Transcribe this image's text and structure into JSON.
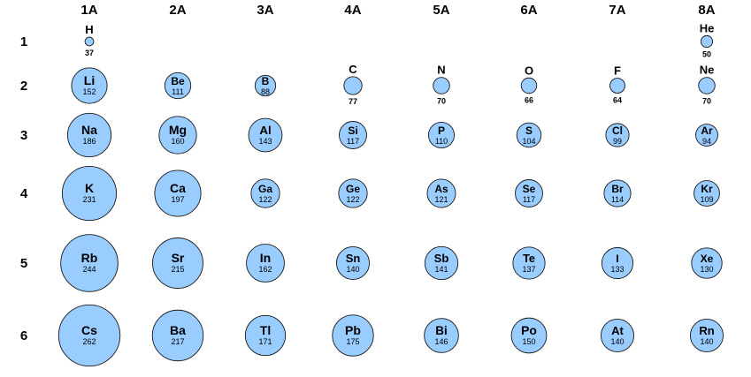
{
  "chart_data": {
    "type": "scatter",
    "title": "",
    "groups": [
      "1A",
      "2A",
      "3A",
      "4A",
      "5A",
      "6A",
      "7A",
      "8A"
    ],
    "periods": [
      "1",
      "2",
      "3",
      "4",
      "5",
      "6"
    ],
    "colors": {
      "atom_fill": "#99ccff",
      "atom_stroke": "#1a1a1a"
    },
    "elements": [
      {
        "symbol": "H",
        "radius": 37,
        "group": 0,
        "period": 0
      },
      {
        "symbol": "He",
        "radius": 50,
        "group": 7,
        "period": 0
      },
      {
        "symbol": "Li",
        "radius": 152,
        "group": 0,
        "period": 1
      },
      {
        "symbol": "Be",
        "radius": 111,
        "group": 1,
        "period": 1
      },
      {
        "symbol": "B",
        "radius": 88,
        "group": 2,
        "period": 1
      },
      {
        "symbol": "C",
        "radius": 77,
        "group": 3,
        "period": 1
      },
      {
        "symbol": "N",
        "radius": 70,
        "group": 4,
        "period": 1
      },
      {
        "symbol": "O",
        "radius": 66,
        "group": 5,
        "period": 1
      },
      {
        "symbol": "F",
        "radius": 64,
        "group": 6,
        "period": 1
      },
      {
        "symbol": "Ne",
        "radius": 70,
        "group": 7,
        "period": 1
      },
      {
        "symbol": "Na",
        "radius": 186,
        "group": 0,
        "period": 2
      },
      {
        "symbol": "Mg",
        "radius": 160,
        "group": 1,
        "period": 2
      },
      {
        "symbol": "Al",
        "radius": 143,
        "group": 2,
        "period": 2
      },
      {
        "symbol": "Si",
        "radius": 117,
        "group": 3,
        "period": 2
      },
      {
        "symbol": "P",
        "radius": 110,
        "group": 4,
        "period": 2
      },
      {
        "symbol": "S",
        "radius": 104,
        "group": 5,
        "period": 2
      },
      {
        "symbol": "Cl",
        "radius": 99,
        "group": 6,
        "period": 2
      },
      {
        "symbol": "Ar",
        "radius": 94,
        "group": 7,
        "period": 2
      },
      {
        "symbol": "K",
        "radius": 231,
        "group": 0,
        "period": 3
      },
      {
        "symbol": "Ca",
        "radius": 197,
        "group": 1,
        "period": 3
      },
      {
        "symbol": "Ga",
        "radius": 122,
        "group": 2,
        "period": 3
      },
      {
        "symbol": "Ge",
        "radius": 122,
        "group": 3,
        "period": 3
      },
      {
        "symbol": "As",
        "radius": 121,
        "group": 4,
        "period": 3
      },
      {
        "symbol": "Se",
        "radius": 117,
        "group": 5,
        "period": 3
      },
      {
        "symbol": "Br",
        "radius": 114,
        "group": 6,
        "period": 3
      },
      {
        "symbol": "Kr",
        "radius": 109,
        "group": 7,
        "period": 3
      },
      {
        "symbol": "Rb",
        "radius": 244,
        "group": 0,
        "period": 4
      },
      {
        "symbol": "Sr",
        "radius": 215,
        "group": 1,
        "period": 4
      },
      {
        "symbol": "In",
        "radius": 162,
        "group": 2,
        "period": 4
      },
      {
        "symbol": "Sn",
        "radius": 140,
        "group": 3,
        "period": 4
      },
      {
        "symbol": "Sb",
        "radius": 141,
        "group": 4,
        "period": 4
      },
      {
        "symbol": "Te",
        "radius": 137,
        "group": 5,
        "period": 4
      },
      {
        "symbol": "I",
        "radius": 133,
        "group": 6,
        "period": 4
      },
      {
        "symbol": "Xe",
        "radius": 130,
        "group": 7,
        "period": 4
      },
      {
        "symbol": "Cs",
        "radius": 262,
        "group": 0,
        "period": 5
      },
      {
        "symbol": "Ba",
        "radius": 217,
        "group": 1,
        "period": 5
      },
      {
        "symbol": "Tl",
        "radius": 171,
        "group": 2,
        "period": 5
      },
      {
        "symbol": "Pb",
        "radius": 175,
        "group": 3,
        "period": 5
      },
      {
        "symbol": "Bi",
        "radius": 146,
        "group": 4,
        "period": 5
      },
      {
        "symbol": "Po",
        "radius": 150,
        "group": 5,
        "period": 5
      },
      {
        "symbol": "At",
        "radius": 140,
        "group": 6,
        "period": 5
      },
      {
        "symbol": "Rn",
        "radius": 140,
        "group": 7,
        "period": 5
      }
    ]
  }
}
